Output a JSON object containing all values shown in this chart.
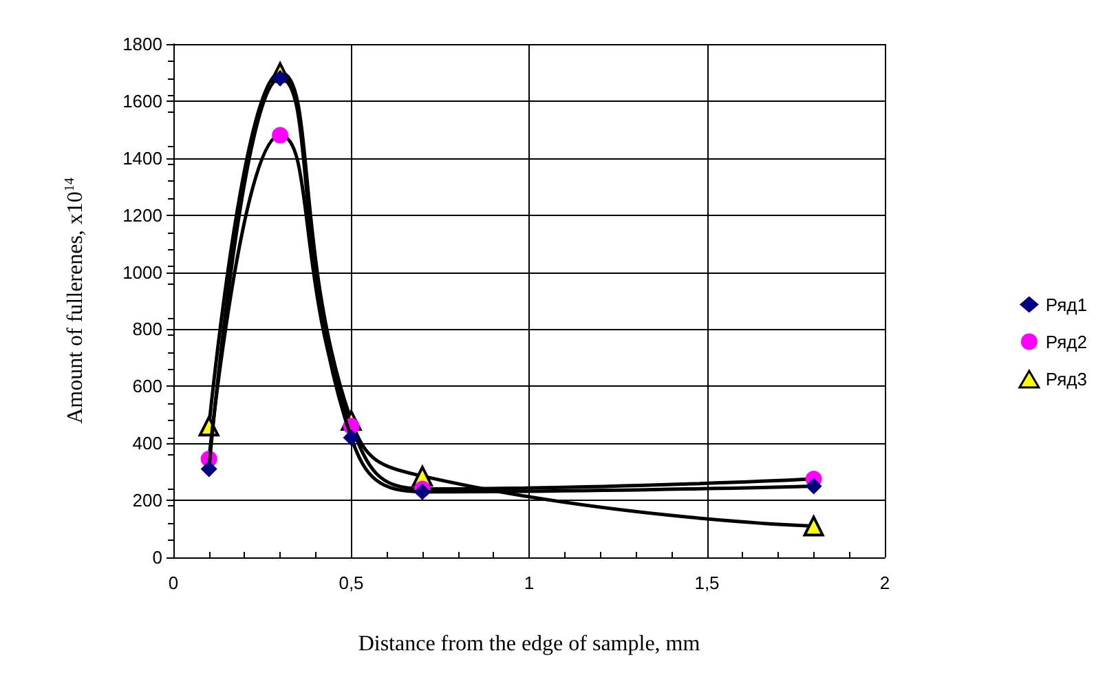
{
  "chart_data": {
    "type": "line",
    "xlabel": "Distance from the edge of sample, mm",
    "ylabel": "Amount of fullerenes, x10$^{14}$",
    "x": [
      0.1,
      0.3,
      0.5,
      0.7,
      1.8
    ],
    "series": [
      {
        "name": "Ряд1",
        "color": "#000080",
        "marker": "diamond",
        "values": [
          310,
          1680,
          420,
          230,
          250
        ]
      },
      {
        "name": "Ряд2",
        "color": "#ff00ff",
        "marker": "circle",
        "values": [
          345,
          1480,
          460,
          240,
          275
        ]
      },
      {
        "name": "Ряд3",
        "color": "#ffff00",
        "marker": "triangle",
        "values": [
          460,
          1700,
          480,
          285,
          110
        ]
      }
    ],
    "xlim": [
      0,
      2
    ],
    "xticks": [
      0,
      {
        "value": 0.5,
        "label": "0,5"
      },
      1,
      {
        "value": 1.5,
        "label": "1,5"
      },
      2
    ],
    "ylim": [
      0,
      1800
    ],
    "yticks": [
      0,
      200,
      400,
      600,
      800,
      1000,
      1200,
      1400,
      1600,
      1800
    ],
    "grid": true,
    "legend": "right",
    "line_style": "solid"
  }
}
